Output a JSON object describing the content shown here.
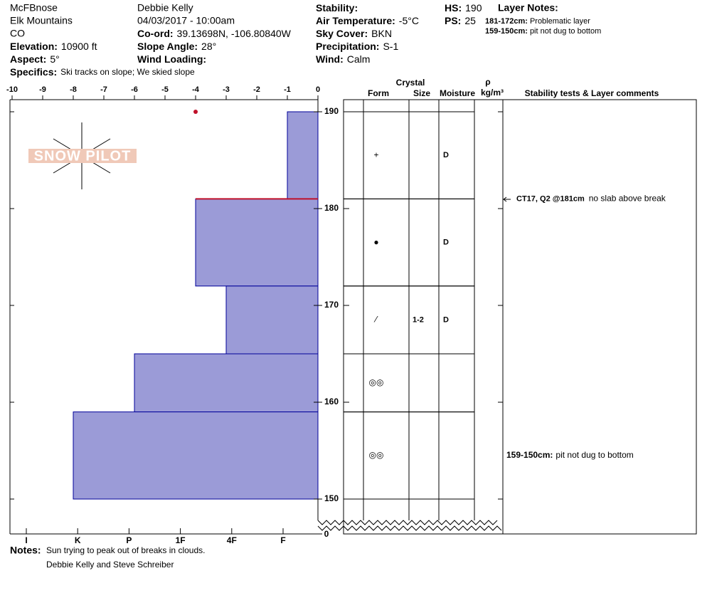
{
  "header": {
    "name": "McFBnose",
    "range": "Elk Mountains",
    "state": "CO",
    "elevation": {
      "label": "Elevation:",
      "value": "10900 ft"
    },
    "aspect": {
      "label": "Aspect:",
      "value": "5°"
    },
    "specifics": {
      "label": "Specifics:",
      "value": "Ski tracks on slope; We skied slope"
    },
    "observer": "Debbie Kelly",
    "datetime": "04/03/2017 - 10:00am",
    "coord": {
      "label": "Co-ord:",
      "value": "39.13698N, -106.80840W"
    },
    "slope": {
      "label": "Slope Angle:",
      "value": "28°"
    },
    "wind_loading": {
      "label": "Wind Loading:"
    },
    "stability": {
      "label": "Stability:"
    },
    "air_temp": {
      "label": "Air Temperature:",
      "value": "-5°C"
    },
    "sky": {
      "label": "Sky Cover:",
      "value": "BKN"
    },
    "precip": {
      "label": "Precipitation:",
      "value": "S-1"
    },
    "wind": {
      "label": "Wind:",
      "value": "Calm"
    },
    "hs": {
      "label": "HS:",
      "value": 190
    },
    "ps": {
      "label": "PS:",
      "value": 25
    },
    "layer_notes": {
      "title": "Layer Notes:",
      "items": [
        {
          "range": "181-172cm:",
          "text": "Problematic layer"
        },
        {
          "range": "159-150cm:",
          "text": "pit not dug to bottom"
        }
      ]
    }
  },
  "chart_data": {
    "type": "snow-profile",
    "xlim": [
      -10,
      0
    ],
    "xticks": [
      -10,
      -9,
      -8,
      -7,
      -6,
      -5,
      -4,
      -3,
      -2,
      -1,
      0
    ],
    "ylim": [
      150,
      190
    ],
    "yticks": [
      190,
      180,
      170,
      160,
      150
    ],
    "bottom_tick": 0,
    "hardness_labels": [
      "I",
      "K",
      "P",
      "1F",
      "4F",
      "F"
    ],
    "color": "#9b9bd7",
    "problem_color": "#c0102a",
    "temp_color": "#c0102a",
    "problem_layer": 181,
    "temperatures": [
      {
        "depth": 190,
        "value": -4
      }
    ],
    "table_headers": {
      "crystal": "Crystal",
      "form": "Form",
      "size": "Size",
      "moisture": "Moisture",
      "rho": "ρ",
      "density": "kg/m³",
      "comments": "Stability tests & Layer comments"
    },
    "layers": [
      {
        "top": 190,
        "bottom": 181,
        "hardness": -1,
        "form": "+",
        "moisture": "D"
      },
      {
        "top": 181,
        "bottom": 172,
        "hardness": -4,
        "form": "●",
        "moisture": "D"
      },
      {
        "top": 172,
        "bottom": 165,
        "hardness": -3,
        "form": "⁄",
        "size": "1-2",
        "moisture": "D"
      },
      {
        "top": 165,
        "bottom": 159,
        "hardness": -6,
        "form": "◎◎"
      },
      {
        "top": 159,
        "bottom": 150,
        "hardness": -8,
        "form": "◎◎",
        "comment": {
          "label": "159-150cm:",
          "text": "pit not dug to bottom"
        }
      }
    ],
    "tests": [
      {
        "depth": 181,
        "label": "CT17, Q2 @181cm",
        "text": "no slab above break"
      }
    ]
  },
  "notes": {
    "label": "Notes:",
    "lines": [
      "Sun trying to peak out of breaks in clouds.",
      "Debbie Kelly and Steve Schreiber"
    ]
  }
}
